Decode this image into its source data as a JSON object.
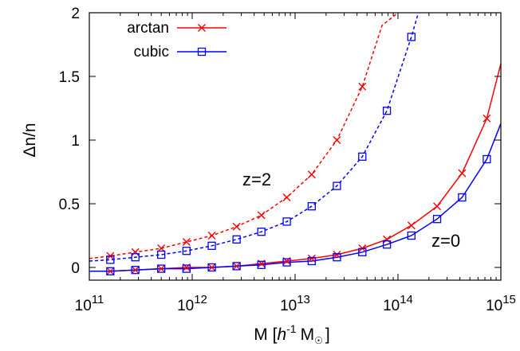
{
  "chart_data": {
    "type": "line",
    "xscale": "log",
    "xlim": [
      100000000000.0,
      1000000000000000.0
    ],
    "ylim": [
      -0.1,
      2
    ],
    "xlabel": "M [h⁻¹ M☉]",
    "xlabel_parts": {
      "prefix": "M [",
      "h": "h",
      "exp": "-1",
      "msun": "M",
      "sun": "☉",
      "suffix": "]"
    },
    "ylabel": "Δn/n",
    "x_ticks": [
      {
        "base": "10",
        "exp": "11"
      },
      {
        "base": "10",
        "exp": "12"
      },
      {
        "base": "10",
        "exp": "13"
      },
      {
        "base": "10",
        "exp": "14"
      },
      {
        "base": "10",
        "exp": "15"
      }
    ],
    "y_ticks": [
      "0",
      "0.5",
      "1",
      "1.5",
      "2"
    ],
    "grid": false,
    "legend_position": "top-left",
    "annotations": [
      "z=2",
      "z=0"
    ],
    "series": [
      {
        "name": "arctan",
        "redshift": "z=2",
        "color": "#ff0000",
        "marker": "x",
        "line": "dashed",
        "x": [
          160000000000.0,
          280000000000.0,
          500000000000.0,
          880000000000.0,
          1550000000000.0,
          2700000000000.0,
          4700000000000.0,
          8300000000000.0,
          14500000000000.0,
          25500000000000.0,
          45000000000000.0
        ],
        "y": [
          0.09,
          0.12,
          0.15,
          0.2,
          0.25,
          0.32,
          0.41,
          0.55,
          0.73,
          1.0,
          1.42
        ]
      },
      {
        "name": "cubic",
        "redshift": "z=2",
        "color": "#0000ff",
        "marker": "square",
        "line": "dashed",
        "x": [
          160000000000.0,
          280000000000.0,
          500000000000.0,
          880000000000.0,
          1550000000000.0,
          2700000000000.0,
          4700000000000.0,
          8300000000000.0,
          14500000000000.0,
          25500000000000.0,
          45000000000000.0,
          78000000000000.0,
          135000000000000.0
        ],
        "y": [
          0.06,
          0.08,
          0.1,
          0.13,
          0.17,
          0.22,
          0.28,
          0.36,
          0.48,
          0.64,
          0.87,
          1.23,
          1.81
        ]
      },
      {
        "name": "arctan",
        "redshift": "z=0",
        "color": "#ff0000",
        "marker": "x",
        "line": "solid",
        "x": [
          160000000000.0,
          280000000000.0,
          500000000000.0,
          880000000000.0,
          1550000000000.0,
          2700000000000.0,
          4700000000000.0,
          8300000000000.0,
          14500000000000.0,
          25500000000000.0,
          45000000000000.0,
          78000000000000.0,
          135000000000000.0,
          240000000000000.0,
          420000000000000.0,
          730000000000000.0
        ],
        "y": [
          -0.03,
          -0.02,
          -0.01,
          0.0,
          0.0,
          0.01,
          0.03,
          0.05,
          0.07,
          0.1,
          0.15,
          0.22,
          0.33,
          0.48,
          0.74,
          1.17
        ]
      },
      {
        "name": "cubic",
        "redshift": "z=0",
        "color": "#0000ff",
        "marker": "square",
        "line": "solid",
        "x": [
          160000000000.0,
          280000000000.0,
          500000000000.0,
          880000000000.0,
          1550000000000.0,
          2700000000000.0,
          4700000000000.0,
          8300000000000.0,
          14500000000000.0,
          25500000000000.0,
          45000000000000.0,
          78000000000000.0,
          135000000000000.0,
          240000000000000.0,
          420000000000000.0,
          730000000000000.0
        ],
        "y": [
          -0.03,
          -0.02,
          -0.01,
          -0.01,
          0.0,
          0.01,
          0.02,
          0.04,
          0.05,
          0.08,
          0.12,
          0.18,
          0.25,
          0.38,
          0.55,
          0.85
        ]
      }
    ],
    "curves": [
      {
        "color": "#ff0000",
        "line": "dashed",
        "x": [
          100000000000.0,
          160000000000.0,
          280000000000.0,
          500000000000.0,
          880000000000.0,
          1550000000000.0,
          2700000000000.0,
          4700000000000.0,
          8300000000000.0,
          14500000000000.0,
          25500000000000.0,
          45000000000000.0,
          70000000000000.0,
          100000000000000.0
        ],
        "y": [
          0.07,
          0.09,
          0.12,
          0.15,
          0.2,
          0.25,
          0.32,
          0.41,
          0.55,
          0.73,
          1.0,
          1.42,
          1.9,
          2.0
        ]
      },
      {
        "color": "#0000ff",
        "line": "dashed",
        "x": [
          100000000000.0,
          160000000000.0,
          280000000000.0,
          500000000000.0,
          880000000000.0,
          1550000000000.0,
          2700000000000.0,
          4700000000000.0,
          8300000000000.0,
          14500000000000.0,
          25500000000000.0,
          45000000000000.0,
          78000000000000.0,
          135000000000000.0,
          158000000000000.0
        ],
        "y": [
          0.05,
          0.06,
          0.08,
          0.1,
          0.13,
          0.17,
          0.22,
          0.28,
          0.36,
          0.48,
          0.64,
          0.87,
          1.23,
          1.81,
          2.0
        ]
      },
      {
        "color": "#ff0000",
        "line": "solid",
        "x": [
          100000000000.0,
          160000000000.0,
          280000000000.0,
          500000000000.0,
          880000000000.0,
          1550000000000.0,
          2700000000000.0,
          4700000000000.0,
          8300000000000.0,
          14500000000000.0,
          25500000000000.0,
          45000000000000.0,
          78000000000000.0,
          135000000000000.0,
          240000000000000.0,
          420000000000000.0,
          730000000000000.0,
          1000000000000000.0
        ],
        "y": [
          -0.03,
          -0.03,
          -0.02,
          -0.01,
          0.0,
          0.0,
          0.01,
          0.03,
          0.05,
          0.07,
          0.1,
          0.15,
          0.22,
          0.33,
          0.48,
          0.74,
          1.17,
          1.6
        ]
      },
      {
        "color": "#0000ff",
        "line": "solid",
        "x": [
          100000000000.0,
          160000000000.0,
          280000000000.0,
          500000000000.0,
          880000000000.0,
          1550000000000.0,
          2700000000000.0,
          4700000000000.0,
          8300000000000.0,
          14500000000000.0,
          25500000000000.0,
          45000000000000.0,
          78000000000000.0,
          135000000000000.0,
          240000000000000.0,
          420000000000000.0,
          730000000000000.0,
          1000000000000000.0
        ],
        "y": [
          -0.03,
          -0.03,
          -0.02,
          -0.01,
          -0.01,
          0.0,
          0.01,
          0.02,
          0.04,
          0.05,
          0.08,
          0.12,
          0.18,
          0.25,
          0.38,
          0.55,
          0.85,
          1.13
        ]
      }
    ],
    "legend": [
      {
        "label": "arctan",
        "color": "#ff0000",
        "marker": "x"
      },
      {
        "label": "cubic",
        "color": "#0000ff",
        "marker": "square"
      }
    ]
  }
}
